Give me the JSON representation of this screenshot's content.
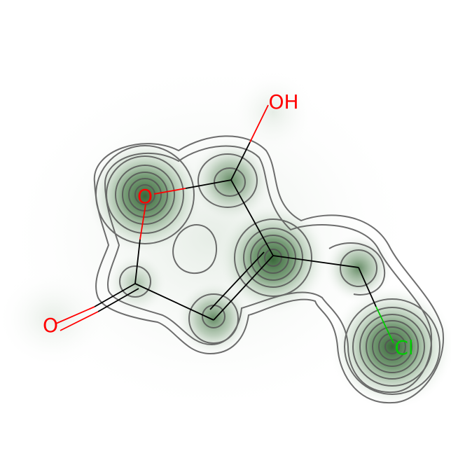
{
  "molecule": {
    "atoms": [
      {
        "id": "O1",
        "label": "O",
        "element": "O"
      },
      {
        "id": "C2",
        "label": "",
        "element": "C"
      },
      {
        "id": "OH",
        "label": "OH",
        "element": "O"
      },
      {
        "id": "C3",
        "label": "",
        "element": "C"
      },
      {
        "id": "C4",
        "label": "",
        "element": "C"
      },
      {
        "id": "C5",
        "label": "",
        "element": "C"
      },
      {
        "id": "O6",
        "label": "O",
        "element": "O"
      },
      {
        "id": "CH2",
        "label": "",
        "element": "C"
      },
      {
        "id": "Cl",
        "label": "Cl",
        "element": "Cl"
      }
    ],
    "bonds": [
      {
        "from": "O1",
        "to": "C2",
        "order": 1
      },
      {
        "from": "C2",
        "to": "OH",
        "order": 1
      },
      {
        "from": "C2",
        "to": "C3",
        "order": 1
      },
      {
        "from": "C3",
        "to": "C4",
        "order": 2
      },
      {
        "from": "C4",
        "to": "C5",
        "order": 1
      },
      {
        "from": "C5",
        "to": "O1",
        "order": 1
      },
      {
        "from": "C5",
        "to": "O6",
        "order": 2
      },
      {
        "from": "C3",
        "to": "CH2",
        "order": 1
      },
      {
        "from": "CH2",
        "to": "Cl",
        "order": 1
      }
    ]
  },
  "colors": {
    "O": "#ff0000",
    "Cl": "#00cc00",
    "C": "#000000",
    "contour": "#555555",
    "density": "#2f6b2f"
  }
}
